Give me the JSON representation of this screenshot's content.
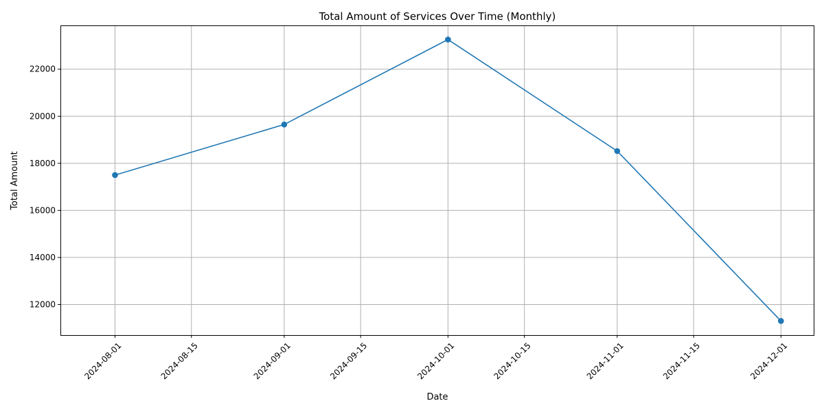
{
  "chart_data": {
    "type": "line",
    "title": "Total Amount of Services Over Time (Monthly)",
    "xlabel": "Date",
    "ylabel": "Total Amount",
    "x": [
      "2024-08-01",
      "2024-09-01",
      "2024-10-01",
      "2024-11-01",
      "2024-12-01"
    ],
    "series": [
      {
        "values": [
          17500,
          19650,
          23260,
          18520,
          11300
        ],
        "color": "#1f77b4",
        "marker": "circle"
      }
    ],
    "xlim": [
      "2024-07-22",
      "2024-12-07"
    ],
    "ylim": [
      10700,
      23860
    ],
    "x_ticks": [
      "2024-08-01",
      "2024-08-15",
      "2024-09-01",
      "2024-09-15",
      "2024-10-01",
      "2024-10-15",
      "2024-11-01",
      "2024-11-15",
      "2024-12-01"
    ],
    "y_ticks": [
      12000,
      14000,
      16000,
      18000,
      20000,
      22000
    ],
    "grid": true,
    "x_tick_rotation": "45 degrees"
  }
}
